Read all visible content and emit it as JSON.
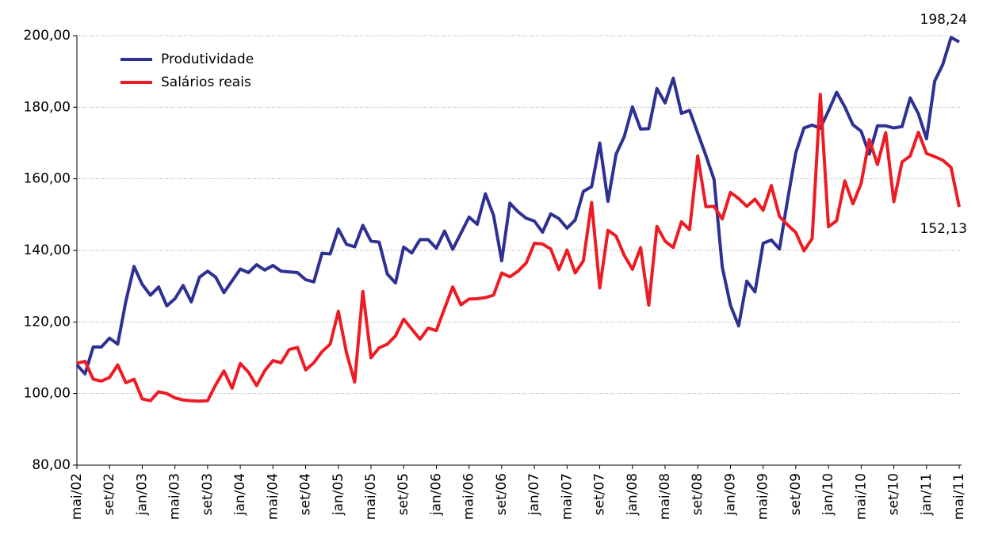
{
  "chart_data": {
    "type": "line",
    "categories": [
      "mai/02",
      null,
      null,
      null,
      "set/02",
      null,
      null,
      null,
      "jan/03",
      null,
      null,
      null,
      "mai/03",
      null,
      null,
      null,
      "set/03",
      null,
      null,
      null,
      "jan/04",
      null,
      null,
      null,
      "mai/04",
      null,
      null,
      null,
      "set/04",
      null,
      null,
      null,
      "jan/05",
      null,
      null,
      null,
      "mai/05",
      null,
      null,
      null,
      "set/05",
      null,
      null,
      null,
      "jan/06",
      null,
      null,
      null,
      "mai/06",
      null,
      null,
      null,
      "set/06",
      null,
      null,
      null,
      "jan/07",
      null,
      null,
      null,
      "mai/07",
      null,
      null,
      null,
      "set/07",
      null,
      null,
      null,
      "jan/08",
      null,
      null,
      null,
      "mai/08",
      null,
      null,
      null,
      "set/08",
      null,
      null,
      null,
      "jan/09",
      null,
      null,
      null,
      "mai/09",
      null,
      null,
      null,
      "set/09",
      null,
      null,
      null,
      "jan/10",
      null,
      null,
      null,
      "mai/10",
      null,
      null,
      null,
      "set/10",
      null,
      null,
      null,
      "jan/11",
      null,
      null,
      null,
      "mai/11"
    ],
    "series": [
      {
        "name": "Produtividade",
        "color": "#2e3192",
        "values": [
          108,
          105.5,
          113,
          113,
          115.5,
          113.8,
          125.8,
          135.5,
          130.5,
          127.5,
          129.8,
          124.5,
          126.5,
          130.2,
          125.6,
          132.5,
          134.2,
          132.5,
          128.2,
          131.5,
          134.8,
          133.8,
          136,
          134.5,
          135.8,
          134.2,
          134,
          133.8,
          131.8,
          131.2,
          139.2,
          139,
          146,
          141.7,
          141,
          147,
          142.6,
          142.3,
          133.4,
          130.9,
          140.9,
          139.3,
          143,
          143,
          140.6,
          145.4,
          140.3,
          144.8,
          149.3,
          147.3,
          155.8,
          149.8,
          137.1,
          153.2,
          150.8,
          149,
          148.2,
          145.1,
          150.2,
          148.9,
          146.2,
          148.5,
          156.5,
          157.8,
          170,
          153.7,
          166.9,
          171.8,
          180.1,
          173.9,
          174,
          185.2,
          181.2,
          188.1,
          178.3,
          179.1,
          172.8,
          166.5,
          159.8,
          135.4,
          124.7,
          118.9,
          131.4,
          128.4,
          142,
          142.9,
          140.4,
          154.2,
          167.3,
          174.2,
          175,
          174.1,
          179,
          184.2,
          180.1,
          175.1,
          173.3,
          166.9,
          174.8,
          174.8,
          174.2,
          174.6,
          182.6,
          178.2,
          171.2,
          187.3,
          192,
          199.5,
          198.24
        ],
        "value_labels": [
          null,
          null,
          null,
          null,
          null,
          null,
          null,
          null,
          null,
          null,
          null,
          null,
          null,
          null,
          null,
          null,
          null,
          null,
          null,
          null,
          null,
          null,
          null,
          null,
          null,
          null,
          null,
          null,
          null,
          null,
          null,
          null,
          null,
          null,
          null,
          null,
          null,
          null,
          null,
          null,
          null,
          null,
          null,
          null,
          null,
          null,
          null,
          null,
          null,
          null,
          null,
          null,
          null,
          null,
          null,
          null,
          null,
          null,
          null,
          null,
          null,
          null,
          null,
          null,
          null,
          null,
          null,
          null,
          null,
          null,
          null,
          null,
          null,
          null,
          null,
          null,
          null,
          null,
          null,
          null,
          null,
          null,
          null,
          null,
          null,
          null,
          null,
          null,
          null,
          null,
          null,
          null,
          null,
          null,
          null,
          null,
          null,
          null,
          null,
          null,
          null,
          null,
          null,
          null,
          null,
          null,
          null,
          null,
          "198,24"
        ]
      },
      {
        "name": "Salários reais",
        "color": "#ed1c24",
        "values": [
          108.5,
          109,
          104,
          103.5,
          104.5,
          108,
          103,
          104,
          98.5,
          98,
          100.5,
          100,
          98.8,
          98.2,
          98,
          97.9,
          98,
          102.5,
          106.3,
          101.5,
          108.4,
          106,
          102.2,
          106.4,
          109.2,
          108.6,
          112.3,
          112.9,
          106.6,
          108.6,
          111.7,
          113.8,
          123,
          111.4,
          103.2,
          128.5,
          110,
          112.8,
          113.8,
          116.1,
          120.8,
          118,
          115.2,
          118.3,
          117.6,
          123.8,
          129.8,
          124.8,
          126.4,
          126.5,
          126.8,
          127.5,
          133.7,
          132.6,
          134.2,
          136.5,
          142,
          141.8,
          140.4,
          134.6,
          140.1,
          133.7,
          137.1,
          153.4,
          129.5,
          145.6,
          144,
          138.6,
          134.7,
          140.8,
          124.7,
          146.7,
          142.6,
          140.8,
          148,
          145.8,
          166.4,
          152.2,
          152.3,
          148.8,
          156.2,
          154.5,
          152.3,
          154.3,
          151.2,
          158.1,
          149.5,
          147.1,
          145,
          139.9,
          143.3,
          183.6,
          146.6,
          148.3,
          159.4,
          153,
          158.7,
          171,
          164,
          172.9,
          153.6,
          164.7,
          166.4,
          173,
          167.1,
          166.2,
          165.2,
          163.2,
          152.13
        ],
        "value_labels": [
          null,
          null,
          null,
          null,
          null,
          null,
          null,
          null,
          null,
          null,
          null,
          null,
          null,
          null,
          null,
          null,
          null,
          null,
          null,
          null,
          null,
          null,
          null,
          null,
          null,
          null,
          null,
          null,
          null,
          null,
          null,
          null,
          null,
          null,
          null,
          null,
          null,
          null,
          null,
          null,
          null,
          null,
          null,
          null,
          null,
          null,
          null,
          null,
          null,
          null,
          null,
          null,
          null,
          null,
          null,
          null,
          null,
          null,
          null,
          null,
          null,
          null,
          null,
          null,
          null,
          null,
          null,
          null,
          null,
          null,
          null,
          null,
          null,
          null,
          null,
          null,
          null,
          null,
          null,
          null,
          null,
          null,
          null,
          null,
          null,
          null,
          null,
          null,
          null,
          null,
          null,
          null,
          null,
          null,
          null,
          null,
          null,
          null,
          null,
          null,
          null,
          null,
          null,
          null,
          null,
          null,
          null,
          null,
          "152,13"
        ]
      }
    ],
    "ylim": [
      80,
      200
    ],
    "yticks": [
      {
        "value": 80,
        "label": "80,00"
      },
      {
        "value": 100,
        "label": "100,00"
      },
      {
        "value": 120,
        "label": "120,00"
      },
      {
        "value": 140,
        "label": "140,00"
      },
      {
        "value": 160,
        "label": "160,00"
      },
      {
        "value": 180,
        "label": "180,00"
      },
      {
        "value": 200,
        "label": "200,00"
      }
    ],
    "grid": true,
    "legend": "top-left"
  }
}
